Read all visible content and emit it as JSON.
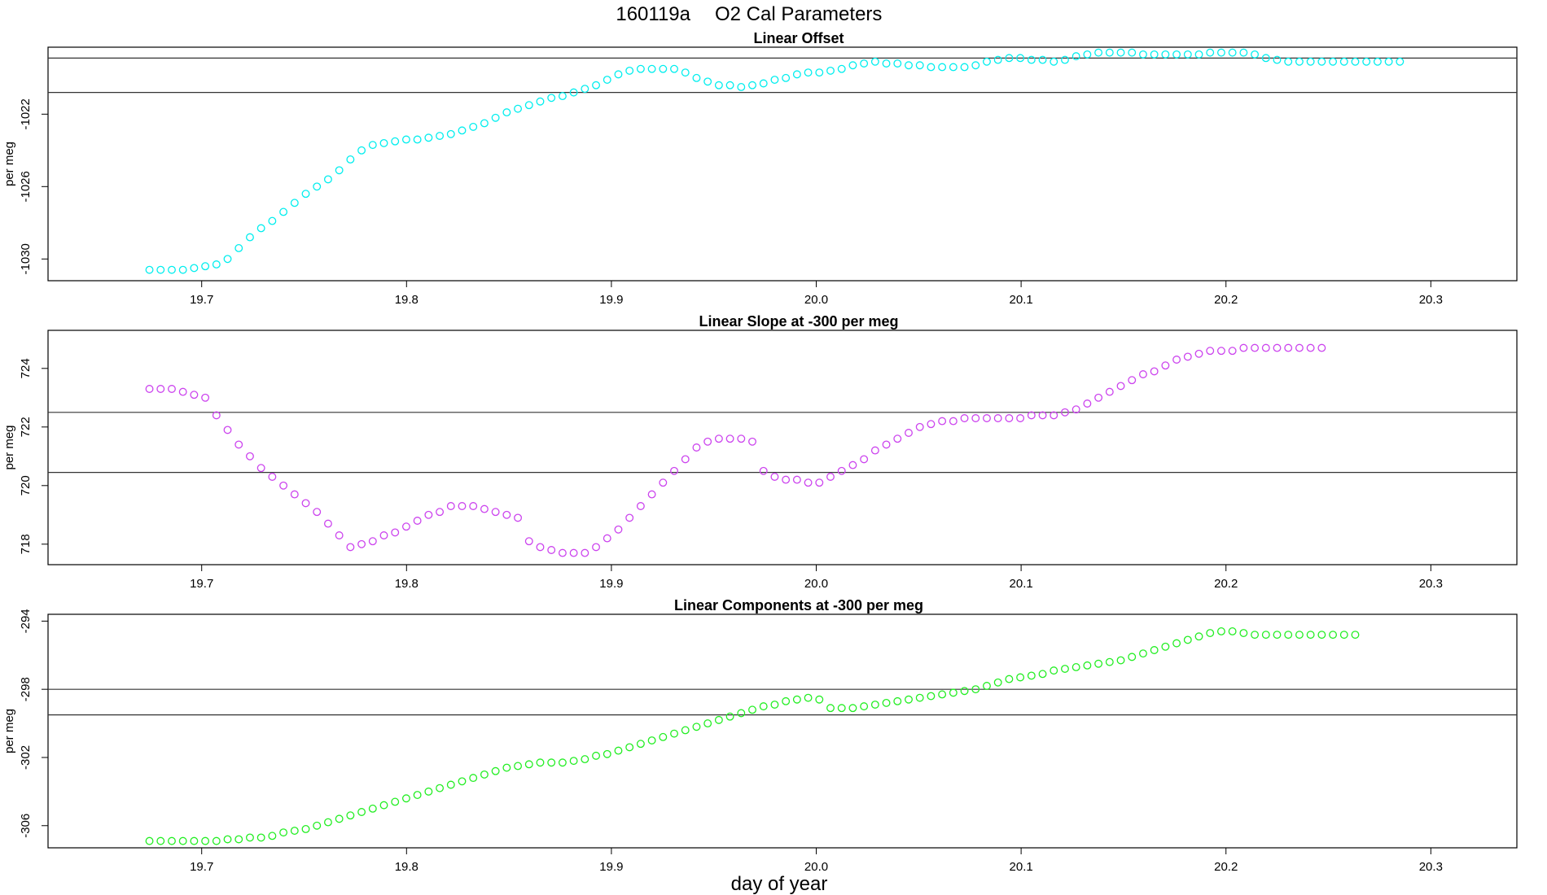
{
  "figure": {
    "title_id": "160119a",
    "title_text": "O2 Cal Parameters",
    "xlabel": "day of year"
  },
  "colors": {
    "offset": "#00eeee",
    "slope": "#cc44ee",
    "components": "#22ee22",
    "frame": "#000000",
    "reference_line": "#333333"
  },
  "chart_data": [
    {
      "type": "scatter",
      "title": "Linear Offset",
      "xlabel": "day of year",
      "ylabel": "per meg",
      "xlim": [
        19.625,
        20.342
      ],
      "ylim": [
        -1031.2,
        -1018.3
      ],
      "xticks": [
        "19.7",
        "19.8",
        "19.9",
        "20.0",
        "20.1",
        "20.2",
        "20.3"
      ],
      "yticks": [
        "-1030",
        "-1026",
        "-1022"
      ],
      "hlines": [
        -1018.9,
        -1020.8
      ],
      "color_key": "offset",
      "x_start": 19.6745,
      "x_step": 0.00545,
      "values": [
        -1030.6,
        -1030.6,
        -1030.6,
        -1030.6,
        -1030.5,
        -1030.4,
        -1030.3,
        -1030.0,
        -1029.4,
        -1028.8,
        -1028.3,
        -1027.9,
        -1027.4,
        -1026.9,
        -1026.4,
        -1026.0,
        -1025.6,
        -1025.1,
        -1024.5,
        -1024.0,
        -1023.7,
        -1023.6,
        -1023.5,
        -1023.4,
        -1023.4,
        -1023.3,
        -1023.2,
        -1023.1,
        -1022.9,
        -1022.7,
        -1022.5,
        -1022.2,
        -1021.9,
        -1021.7,
        -1021.5,
        -1021.3,
        -1021.1,
        -1021.0,
        -1020.8,
        -1020.6,
        -1020.4,
        -1020.1,
        -1019.8,
        -1019.6,
        -1019.5,
        -1019.5,
        -1019.5,
        -1019.5,
        -1019.7,
        -1020.0,
        -1020.2,
        -1020.4,
        -1020.4,
        -1020.5,
        -1020.4,
        -1020.3,
        -1020.1,
        -1020.0,
        -1019.8,
        -1019.7,
        -1019.7,
        -1019.6,
        -1019.5,
        -1019.3,
        -1019.2,
        -1019.1,
        -1019.2,
        -1019.2,
        -1019.3,
        -1019.3,
        -1019.4,
        -1019.4,
        -1019.4,
        -1019.4,
        -1019.3,
        -1019.1,
        -1019.0,
        -1018.9,
        -1018.9,
        -1019.0,
        -1019.0,
        -1019.1,
        -1019.0,
        -1018.8,
        -1018.7,
        -1018.6,
        -1018.6,
        -1018.6,
        -1018.6,
        -1018.7,
        -1018.7,
        -1018.7,
        -1018.7,
        -1018.7,
        -1018.7,
        -1018.6,
        -1018.6,
        -1018.6,
        -1018.6,
        -1018.7,
        -1018.9,
        -1019.0,
        -1019.1,
        -1019.1,
        -1019.1,
        -1019.1,
        -1019.1,
        -1019.1,
        -1019.1,
        -1019.1,
        -1019.1,
        -1019.1,
        -1019.1
      ]
    },
    {
      "type": "scatter",
      "title": "Linear Slope at -300 per meg",
      "xlabel": "day of year",
      "ylabel": "per meg",
      "xlim": [
        19.625,
        20.342
      ],
      "ylim": [
        717.3,
        725.3
      ],
      "xticks": [
        "19.7",
        "19.8",
        "19.9",
        "20.0",
        "20.1",
        "20.2",
        "20.3"
      ],
      "yticks": [
        "718",
        "720",
        "722",
        "724"
      ],
      "hlines": [
        722.5,
        720.45
      ],
      "color_key": "slope",
      "x_start": 19.6745,
      "x_step": 0.00545,
      "values": [
        723.3,
        723.3,
        723.3,
        723.2,
        723.1,
        723.0,
        722.4,
        721.9,
        721.4,
        721.0,
        720.6,
        720.3,
        720.0,
        719.7,
        719.4,
        719.1,
        718.7,
        718.3,
        717.9,
        718.0,
        718.1,
        718.3,
        718.4,
        718.6,
        718.8,
        719.0,
        719.1,
        719.3,
        719.3,
        719.3,
        719.2,
        719.1,
        719.0,
        718.9,
        718.1,
        717.9,
        717.8,
        717.7,
        717.7,
        717.7,
        717.9,
        718.2,
        718.5,
        718.9,
        719.3,
        719.7,
        720.1,
        720.5,
        720.9,
        721.3,
        721.5,
        721.6,
        721.6,
        721.6,
        721.5,
        720.5,
        720.3,
        720.2,
        720.2,
        720.1,
        720.1,
        720.3,
        720.5,
        720.7,
        720.9,
        721.2,
        721.4,
        721.6,
        721.8,
        722.0,
        722.1,
        722.2,
        722.2,
        722.3,
        722.3,
        722.3,
        722.3,
        722.3,
        722.3,
        722.4,
        722.4,
        722.4,
        722.5,
        722.6,
        722.8,
        723.0,
        723.2,
        723.4,
        723.6,
        723.8,
        723.9,
        724.1,
        724.3,
        724.4,
        724.5,
        724.6,
        724.6,
        724.6,
        724.7,
        724.7,
        724.7,
        724.7,
        724.7,
        724.7,
        724.7,
        724.7
      ]
    },
    {
      "type": "scatter",
      "title": "Linear Components at -300 per meg",
      "xlabel": "day of year",
      "ylabel": "per meg",
      "xlim": [
        19.625,
        20.342
      ],
      "ylim": [
        -307.3,
        -293.6
      ],
      "xticks": [
        "19.7",
        "19.8",
        "19.9",
        "20.0",
        "20.1",
        "20.2",
        "20.3"
      ],
      "yticks": [
        "-306",
        "-302",
        "-298",
        "-294"
      ],
      "hlines": [
        -298.0,
        -299.5
      ],
      "color_key": "components",
      "x_start": 19.6745,
      "x_step": 0.00545,
      "values": [
        -306.9,
        -306.9,
        -306.9,
        -306.9,
        -306.9,
        -306.9,
        -306.9,
        -306.8,
        -306.8,
        -306.7,
        -306.7,
        -306.6,
        -306.4,
        -306.3,
        -306.2,
        -306.0,
        -305.8,
        -305.6,
        -305.4,
        -305.2,
        -305.0,
        -304.8,
        -304.6,
        -304.4,
        -304.2,
        -304.0,
        -303.8,
        -303.6,
        -303.4,
        -303.2,
        -303.0,
        -302.8,
        -302.6,
        -302.5,
        -302.4,
        -302.3,
        -302.3,
        -302.3,
        -302.2,
        -302.1,
        -301.9,
        -301.8,
        -301.6,
        -301.4,
        -301.2,
        -301.0,
        -300.8,
        -300.6,
        -300.4,
        -300.2,
        -300.0,
        -299.8,
        -299.6,
        -299.4,
        -299.2,
        -299.0,
        -298.9,
        -298.7,
        -298.6,
        -298.5,
        -298.6,
        -299.1,
        -299.1,
        -299.1,
        -299.0,
        -298.9,
        -298.8,
        -298.7,
        -298.6,
        -298.5,
        -298.4,
        -298.3,
        -298.2,
        -298.1,
        -298.0,
        -297.8,
        -297.6,
        -297.4,
        -297.3,
        -297.2,
        -297.1,
        -296.9,
        -296.8,
        -296.7,
        -296.6,
        -296.5,
        -296.4,
        -296.3,
        -296.1,
        -295.9,
        -295.7,
        -295.5,
        -295.3,
        -295.1,
        -294.9,
        -294.7,
        -294.6,
        -294.6,
        -294.7,
        -294.8,
        -294.8,
        -294.8,
        -294.8,
        -294.8,
        -294.8,
        -294.8,
        -294.8,
        -294.8,
        -294.8
      ]
    }
  ]
}
